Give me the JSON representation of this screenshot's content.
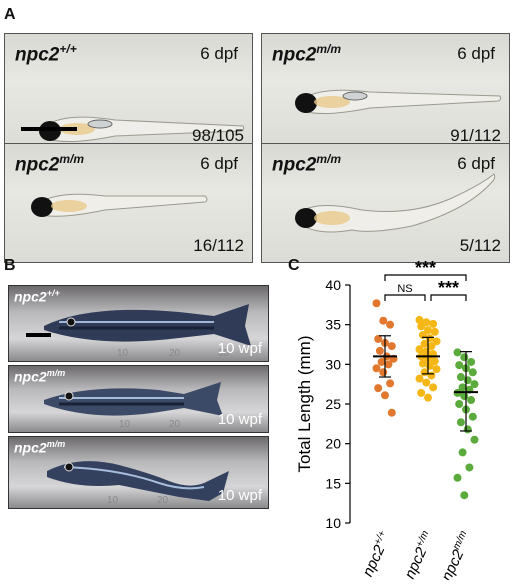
{
  "panel_a": {
    "letter": "A",
    "larvae": [
      {
        "geno_base": "npc2",
        "geno_sup": "+/+",
        "dpf": "6 dpf",
        "count": "98/105"
      },
      {
        "geno_base": "npc2",
        "geno_sup": "m/m",
        "dpf": "6 dpf",
        "count": "91/112"
      },
      {
        "geno_base": "npc2",
        "geno_sup": "m/m",
        "dpf": "6 dpf",
        "count": "16/112"
      },
      {
        "geno_base": "npc2",
        "geno_sup": "m/m",
        "dpf": "6 dpf",
        "count": "5/112"
      }
    ]
  },
  "panel_b": {
    "letter": "B",
    "fish": [
      {
        "geno_base": "npc2",
        "geno_sup": "+/+",
        "age": "10 wpf"
      },
      {
        "geno_base": "npc2",
        "geno_sup": "m/m",
        "age": "10 wpf"
      },
      {
        "geno_base": "npc2",
        "geno_sup": "m/m",
        "age": "10 wpf"
      }
    ],
    "ruler_top": [
      "10",
      "20",
      "30"
    ],
    "ruler_mid": [
      "10",
      "20"
    ],
    "ruler_bot": [
      "10",
      "20"
    ]
  },
  "chart_data": {
    "panel_letter": "C",
    "type": "scatter",
    "ylabel": "Total Length (mm)",
    "ylim": [
      10,
      40
    ],
    "yticks": [
      10,
      15,
      20,
      25,
      30,
      35,
      40
    ],
    "groups": [
      {
        "label_base": "npc2",
        "label_sup": "+/+",
        "color": "#E2782E",
        "mean": 31.0,
        "sd_low": 28.4,
        "sd_high": 33.6,
        "values": [
          37.7,
          35.5,
          35.0,
          33.2,
          32.7,
          32.3,
          31.7,
          31.0,
          30.7,
          30.3,
          30.0,
          29.5,
          29.0,
          27.6,
          27.0,
          26.1,
          23.9
        ]
      },
      {
        "label_base": "npc2",
        "label_sup": "+/m",
        "color": "#F5B716",
        "mean": 31.0,
        "sd_low": 28.8,
        "sd_high": 33.4,
        "values": [
          35.6,
          35.3,
          35.1,
          34.8,
          34.3,
          34.1,
          33.7,
          33.3,
          32.9,
          32.6,
          32.3,
          31.9,
          31.6,
          31.3,
          31.0,
          30.7,
          30.4,
          30.1,
          29.8,
          29.4,
          29.0,
          28.6,
          28.2,
          27.7,
          27.1,
          26.4,
          25.8
        ]
      },
      {
        "label_base": "npc2",
        "label_sup": "m/m",
        "color": "#5AAA3C",
        "mean": 26.5,
        "sd_low": 21.6,
        "sd_high": 31.6,
        "values": [
          31.5,
          30.9,
          30.3,
          29.9,
          29.5,
          29.0,
          28.4,
          28.0,
          27.5,
          27.1,
          26.8,
          26.4,
          26.0,
          25.5,
          25.0,
          24.3,
          23.4,
          22.7,
          21.8,
          20.5,
          18.9,
          17.0,
          15.7,
          13.5
        ]
      }
    ],
    "comparisons": [
      {
        "from": 0,
        "to": 2,
        "label": "***"
      },
      {
        "from": 0,
        "to": 1,
        "label": "NS"
      },
      {
        "from": 1,
        "to": 2,
        "label": "***"
      }
    ]
  }
}
